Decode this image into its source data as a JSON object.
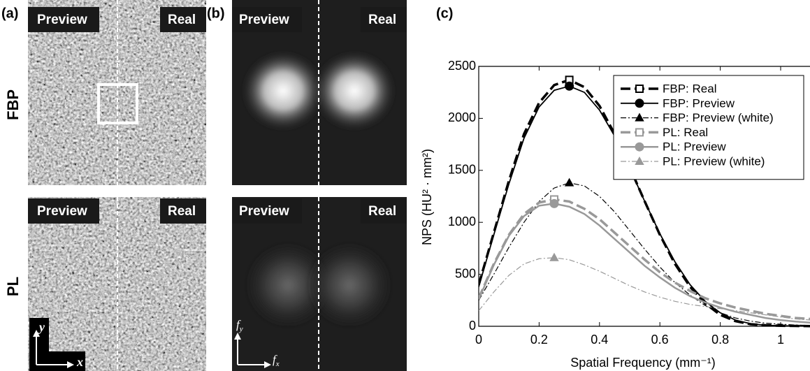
{
  "figure": {
    "panel_labels": [
      "(a)",
      "(b)",
      "(c)"
    ],
    "row_labels": [
      "FBP",
      "PL"
    ],
    "preview_label": "Preview",
    "real_label": "Real",
    "space_axes": [
      "x",
      "y"
    ],
    "freq_symbol": "f"
  },
  "chart_data": {
    "type": "line",
    "xlabel": "Spatial Frequency (mm⁻¹)",
    "ylabel": "NPS (HU² · mm²)",
    "x": [
      0,
      0.05,
      0.1,
      0.15,
      0.2,
      0.25,
      0.3,
      0.35,
      0.4,
      0.45,
      0.5,
      0.55,
      0.6,
      0.65,
      0.7,
      0.75,
      0.8,
      0.85,
      0.9,
      0.95,
      1.0,
      1.05,
      1.1
    ],
    "xlim": [
      0,
      1.1
    ],
    "ylim": [
      0,
      2500
    ],
    "xticks": [
      0,
      0.2,
      0.4,
      0.6,
      0.8,
      1
    ],
    "yticks": [
      0,
      500,
      1000,
      1500,
      2000,
      2500
    ],
    "legend": "upper right",
    "series": [
      {
        "name": "FBP: Real",
        "color": "#000000",
        "dash": "dashed",
        "width": 3.5,
        "marker": "square",
        "values": [
          400,
          900,
          1400,
          1850,
          2150,
          2320,
          2370,
          2300,
          2120,
          1850,
          1530,
          1200,
          880,
          600,
          380,
          220,
          110,
          50,
          20,
          10,
          5,
          3,
          2
        ]
      },
      {
        "name": "FBP: Preview",
        "color": "#000000",
        "dash": "solid",
        "width": 1.8,
        "marker": "circle",
        "values": [
          380,
          880,
          1370,
          1810,
          2110,
          2270,
          2310,
          2250,
          2080,
          1830,
          1520,
          1200,
          890,
          620,
          400,
          240,
          130,
          60,
          25,
          10,
          5,
          3,
          2
        ]
      },
      {
        "name": "FBP: Preview (white)",
        "color": "#000000",
        "dash": "dashdot",
        "width": 1.2,
        "marker": "triangle",
        "values": [
          250,
          500,
          760,
          1000,
          1200,
          1330,
          1380,
          1350,
          1250,
          1100,
          920,
          740,
          570,
          420,
          300,
          200,
          130,
          80,
          50,
          30,
          20,
          12,
          8
        ]
      },
      {
        "name": "PL: Real",
        "color": "#999999",
        "dash": "dashed",
        "width": 3.5,
        "marker": "square",
        "values": [
          270,
          600,
          880,
          1080,
          1190,
          1220,
          1200,
          1130,
          1030,
          900,
          770,
          640,
          520,
          420,
          340,
          270,
          220,
          180,
          150,
          120,
          100,
          80,
          70
        ]
      },
      {
        "name": "PL: Preview",
        "color": "#999999",
        "dash": "solid",
        "width": 2.5,
        "marker": "circle",
        "values": [
          260,
          590,
          870,
          1060,
          1160,
          1180,
          1150,
          1080,
          970,
          840,
          710,
          580,
          470,
          370,
          290,
          230,
          180,
          140,
          110,
          80,
          60,
          45,
          35
        ]
      },
      {
        "name": "PL: Preview (white)",
        "color": "#999999",
        "dash": "dashdot",
        "width": 1.2,
        "marker": "triangle",
        "values": [
          150,
          330,
          490,
          600,
          650,
          660,
          640,
          590,
          530,
          460,
          390,
          330,
          280,
          240,
          210,
          190,
          170,
          150,
          130,
          110,
          90,
          70,
          60
        ]
      }
    ]
  }
}
